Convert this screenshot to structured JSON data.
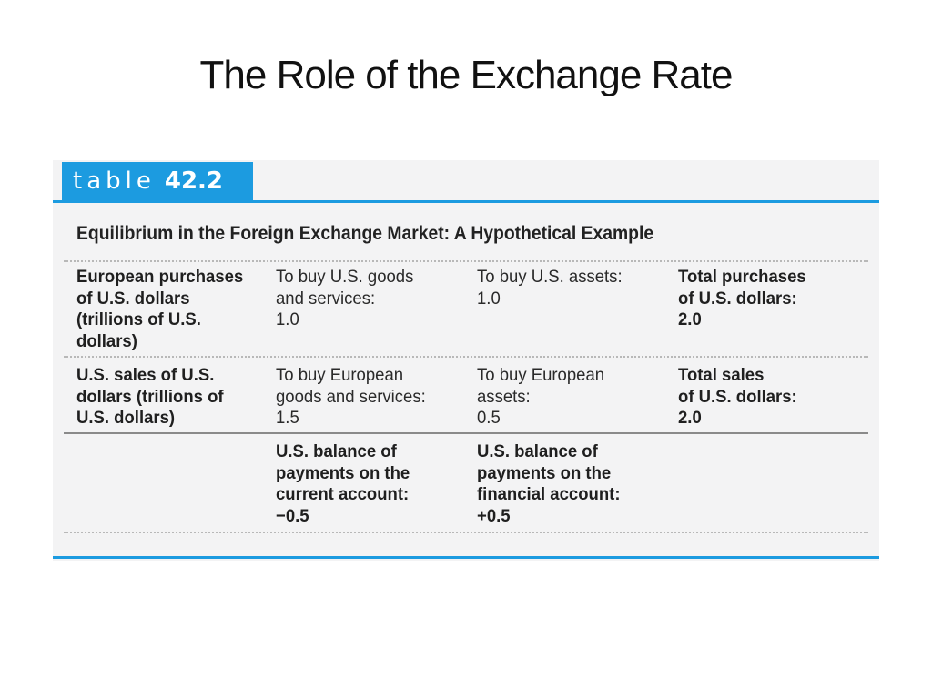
{
  "slide": {
    "title": "The Role of the Exchange Rate"
  },
  "table": {
    "label_word": "table",
    "label_number": "42.2",
    "caption": "Equilibrium in the Foreign Exchange Market: A Hypothetical Example",
    "accent_color": "#1c9be0",
    "rows": [
      {
        "header": [
          "European purchases",
          "of U.S. dollars",
          "(trillions of U.S.",
          "dollars)"
        ],
        "cells": [
          [
            "To buy U.S. goods",
            "and services:",
            "1.0"
          ],
          [
            "To buy U.S. assets:",
            "1.0"
          ],
          [
            "Total purchases",
            "of U.S. dollars:",
            "2.0"
          ]
        ]
      },
      {
        "header": [
          "U.S. sales of U.S.",
          "dollars (trillions of",
          "U.S. dollars)"
        ],
        "cells": [
          [
            "To buy European",
            "goods and services:",
            "1.5"
          ],
          [
            "To buy European",
            "assets:",
            "0.5"
          ],
          [
            "Total sales",
            "of U.S. dollars:",
            "2.0"
          ]
        ]
      },
      {
        "cells": [
          [
            "U.S. balance of",
            "payments on the",
            "current account:",
            "−0.5"
          ],
          [
            "U.S. balance of",
            "payments on the",
            "financial account:",
            "+0.5"
          ]
        ]
      }
    ]
  }
}
